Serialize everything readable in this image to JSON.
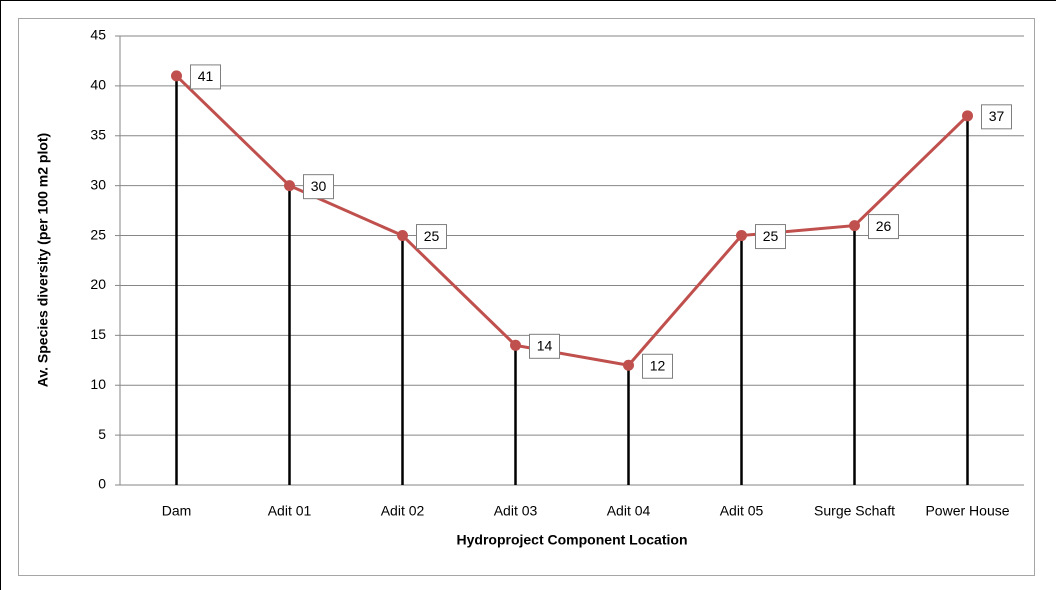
{
  "chart_data": {
    "type": "line",
    "categories": [
      "Dam",
      "Adit 01",
      "Adit 02",
      "Adit 03",
      "Adit 04",
      "Adit 05",
      "Surge Schaft",
      "Power House"
    ],
    "values": [
      41,
      30,
      25,
      14,
      12,
      25,
      26,
      37
    ],
    "color": "#c0504d",
    "drop_line_color": "#000000",
    "x_label": "Hydroproject Component Location",
    "y_label": "Av. Species diversity (per 100 m2 plot)",
    "ylim": [
      0,
      45
    ],
    "yticks": [
      0,
      5,
      10,
      15,
      20,
      25,
      30,
      35,
      40,
      45
    ],
    "grid": true
  }
}
